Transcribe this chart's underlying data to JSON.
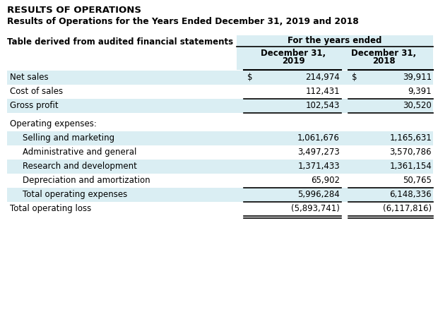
{
  "title1": "RESULTS OF OPERATIONS",
  "title2": "Results of Operations for the Years Ended December 31, 2019 and 2018",
  "table_label": "Table derived from audited financial statements",
  "col_header_group": "For the years ended",
  "rows": [
    {
      "label": "Net sales",
      "indent": 0,
      "val2019": "214,974",
      "val2018": "39,911",
      "dollar2019": true,
      "dollar2018": true,
      "bg": "#daeef3",
      "top_border": false,
      "bottom_border": false,
      "gap_above": true
    },
    {
      "label": "Cost of sales",
      "indent": 0,
      "val2019": "112,431",
      "val2018": "9,391",
      "dollar2019": false,
      "dollar2018": false,
      "bg": "#ffffff",
      "top_border": false,
      "bottom_border": false,
      "gap_above": false
    },
    {
      "label": "Gross profit",
      "indent": 0,
      "val2019": "102,543",
      "val2018": "30,520",
      "dollar2019": false,
      "dollar2018": false,
      "bg": "#daeef3",
      "top_border": true,
      "bottom_border": true,
      "gap_above": false
    },
    {
      "label": "Operating expenses:",
      "indent": 0,
      "val2019": "",
      "val2018": "",
      "dollar2019": false,
      "dollar2018": false,
      "bg": "#ffffff",
      "top_border": false,
      "bottom_border": false,
      "gap_above": true
    },
    {
      "label": "Selling and marketing",
      "indent": 1,
      "val2019": "1,061,676",
      "val2018": "1,165,631",
      "dollar2019": false,
      "dollar2018": false,
      "bg": "#daeef3",
      "top_border": false,
      "bottom_border": false,
      "gap_above": false
    },
    {
      "label": "Administrative and general",
      "indent": 1,
      "val2019": "3,497,273",
      "val2018": "3,570,786",
      "dollar2019": false,
      "dollar2018": false,
      "bg": "#ffffff",
      "top_border": false,
      "bottom_border": false,
      "gap_above": false
    },
    {
      "label": "Research and development",
      "indent": 1,
      "val2019": "1,371,433",
      "val2018": "1,361,154",
      "dollar2019": false,
      "dollar2018": false,
      "bg": "#daeef3",
      "top_border": false,
      "bottom_border": false,
      "gap_above": false
    },
    {
      "label": "Depreciation and amortization",
      "indent": 1,
      "val2019": "65,902",
      "val2018": "50,765",
      "dollar2019": false,
      "dollar2018": false,
      "bg": "#ffffff",
      "top_border": false,
      "bottom_border": true,
      "gap_above": false
    },
    {
      "label": "Total operating expenses",
      "indent": 1,
      "val2019": "5,996,284",
      "val2018": "6,148,336",
      "dollar2019": false,
      "dollar2018": false,
      "bg": "#daeef3",
      "top_border": false,
      "bottom_border": true,
      "gap_above": false
    },
    {
      "label": "Total operating loss",
      "indent": 0,
      "val2019": "(5,893,741)",
      "val2018": "(6,117,816)",
      "dollar2019": false,
      "dollar2018": false,
      "bg": "#ffffff",
      "top_border": false,
      "bottom_border": true,
      "gap_above": false
    }
  ],
  "light_blue": "#daeef3",
  "white": "#ffffff",
  "fig_w": 6.2,
  "fig_h": 4.42,
  "dpi": 100
}
